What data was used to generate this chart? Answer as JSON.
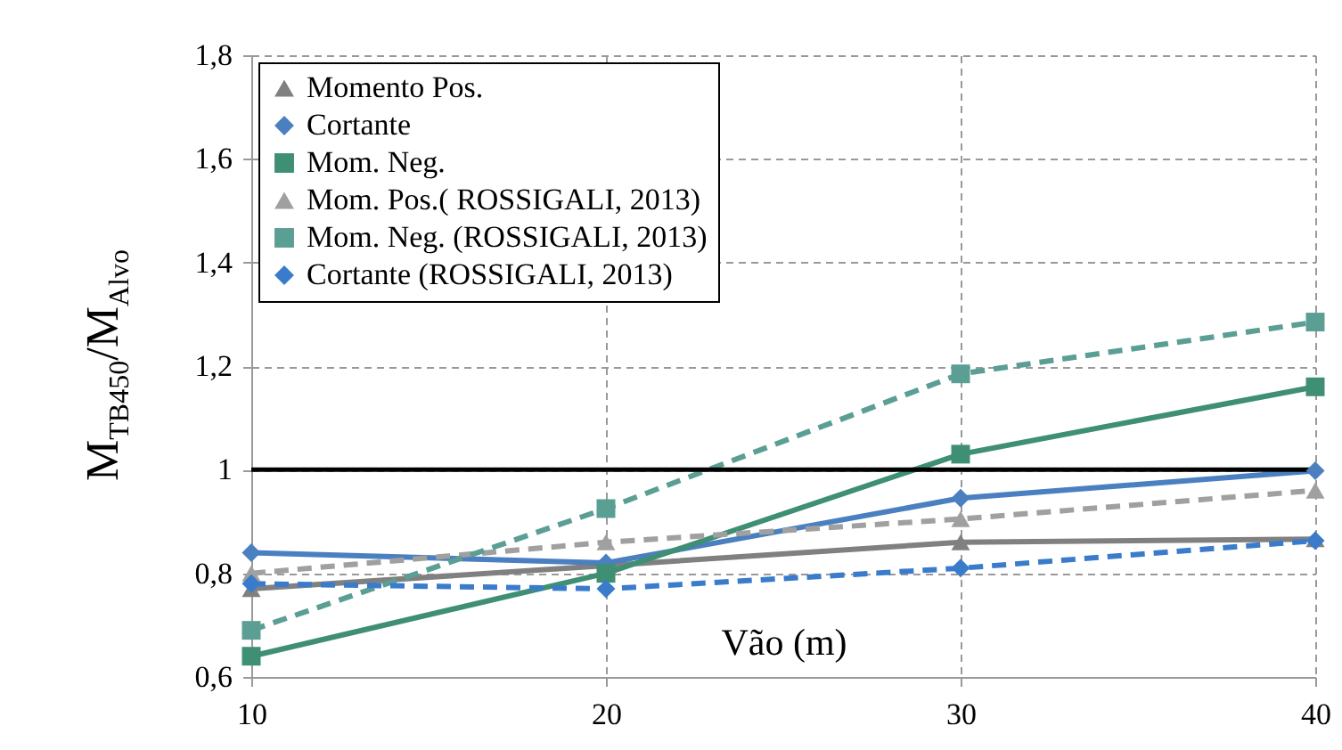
{
  "chart_data": {
    "type": "line",
    "xlabel": "Vão (m)",
    "ylabel": "M$_{TB450}$/M$_{Alvo}$",
    "x": [
      10,
      20,
      30,
      40
    ],
    "xlim": [
      10,
      40
    ],
    "xticks": [
      10,
      20,
      30,
      40
    ],
    "ylim": [
      0.6,
      1.8
    ],
    "yticks": [
      {
        "value": 0.6,
        "label": "0,6"
      },
      {
        "value": 0.8,
        "label": "0,8"
      },
      1,
      {
        "value": 1.2,
        "label": "1,2"
      },
      {
        "value": 1.4,
        "label": "1,4"
      },
      {
        "value": 1.6,
        "label": "1,6"
      },
      {
        "value": 1.8,
        "label": "1,8"
      }
    ],
    "grid": true,
    "legend": "top left",
    "ref_lines": [
      {
        "axis": "y",
        "value": 1,
        "color": "#000000"
      }
    ],
    "series": [
      {
        "name": "Momento Pos.",
        "color": "#808080",
        "marker": "triangle",
        "line_style": "solid",
        "values": [
          0.77,
          0.815,
          0.86,
          0.866
        ]
      },
      {
        "name": "Cortante",
        "color": "#4a7fc0",
        "marker": "diamond",
        "line_style": "solid",
        "values": [
          0.84,
          0.82,
          0.945,
          0.998
        ]
      },
      {
        "name": "Mom. Neg.",
        "color": "#3f8f74",
        "marker": "square",
        "line_style": "solid",
        "values": [
          0.64,
          0.8,
          1.03,
          1.16
        ]
      },
      {
        "name": "Mom. Pos.( ROSSIGALI, 2013)",
        "color": "#a0a0a0",
        "marker": "triangle",
        "line_style": "dashed",
        "values": [
          0.8,
          0.86,
          0.905,
          0.96
        ]
      },
      {
        "name": "Mom. Neg. (ROSSIGALI, 2013)",
        "color": "#5b9e94",
        "marker": "square",
        "line_style": "dashed",
        "values": [
          0.69,
          0.925,
          1.185,
          1.285
        ]
      },
      {
        "name": "Cortante (ROSSIGALI, 2013)",
        "color": "#3a7ccb",
        "marker": "diamond",
        "line_style": "dashed",
        "values": [
          0.78,
          0.77,
          0.81,
          0.863
        ]
      }
    ]
  }
}
